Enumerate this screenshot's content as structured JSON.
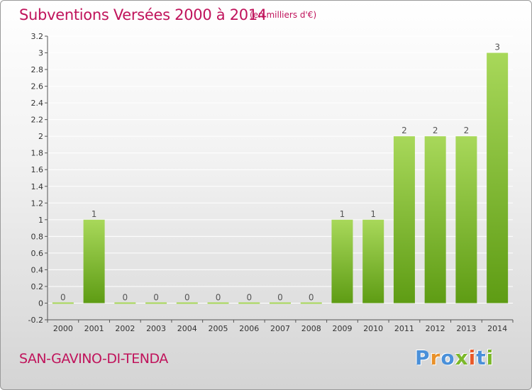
{
  "header": {
    "title": "Subventions Versées 2000 à 2014",
    "unit": "(en milliers d'€)"
  },
  "footer": {
    "place": "SAN-GAVINO-DI-TENDA",
    "logo": [
      "P",
      "r",
      "o",
      "x",
      "i",
      "t",
      "i"
    ]
  },
  "colors": {
    "title": "#c0135b",
    "bar_light": "#a8d85a",
    "bar_dark": "#5e9c14",
    "grid": "#ffffff",
    "logo": [
      "#4a90d9",
      "#e8912a",
      "#4a90d9",
      "#7bb82a",
      "#e85a2a",
      "#4a90d9",
      "#7bb82a"
    ]
  },
  "chart_data": {
    "type": "bar",
    "title": "Subventions Versées 2000 à 2014",
    "xlabel": "",
    "ylabel": "",
    "categories": [
      "2000",
      "2001",
      "2002",
      "2003",
      "2004",
      "2005",
      "2006",
      "2007",
      "2008",
      "2009",
      "2010",
      "2011",
      "2012",
      "2013",
      "2014"
    ],
    "values": [
      0,
      1,
      0,
      0,
      0,
      0,
      0,
      0,
      0,
      1,
      1,
      2,
      2,
      2,
      3
    ],
    "data_labels": [
      "0",
      "1",
      "0",
      "0",
      "0",
      "0",
      "0",
      "0",
      "0",
      "1",
      "1",
      "2",
      "2",
      "2",
      "3"
    ],
    "ylim": [
      -0.2,
      3.2
    ],
    "yticks": [
      -0.2,
      0,
      0.2,
      0.4,
      0.6,
      0.8,
      1,
      1.2,
      1.4,
      1.6,
      1.8,
      2,
      2.2,
      2.4,
      2.6,
      2.8,
      3,
      3.2
    ],
    "ytick_labels": [
      "-0.2",
      "0",
      "0.2",
      "0.4",
      "0.6",
      "0.8",
      "1",
      "1.2",
      "1.4",
      "1.6",
      "1.8",
      "2",
      "2.2",
      "2.4",
      "2.6",
      "2.8",
      "3",
      "3.2"
    ],
    "grid": "horizontal"
  }
}
